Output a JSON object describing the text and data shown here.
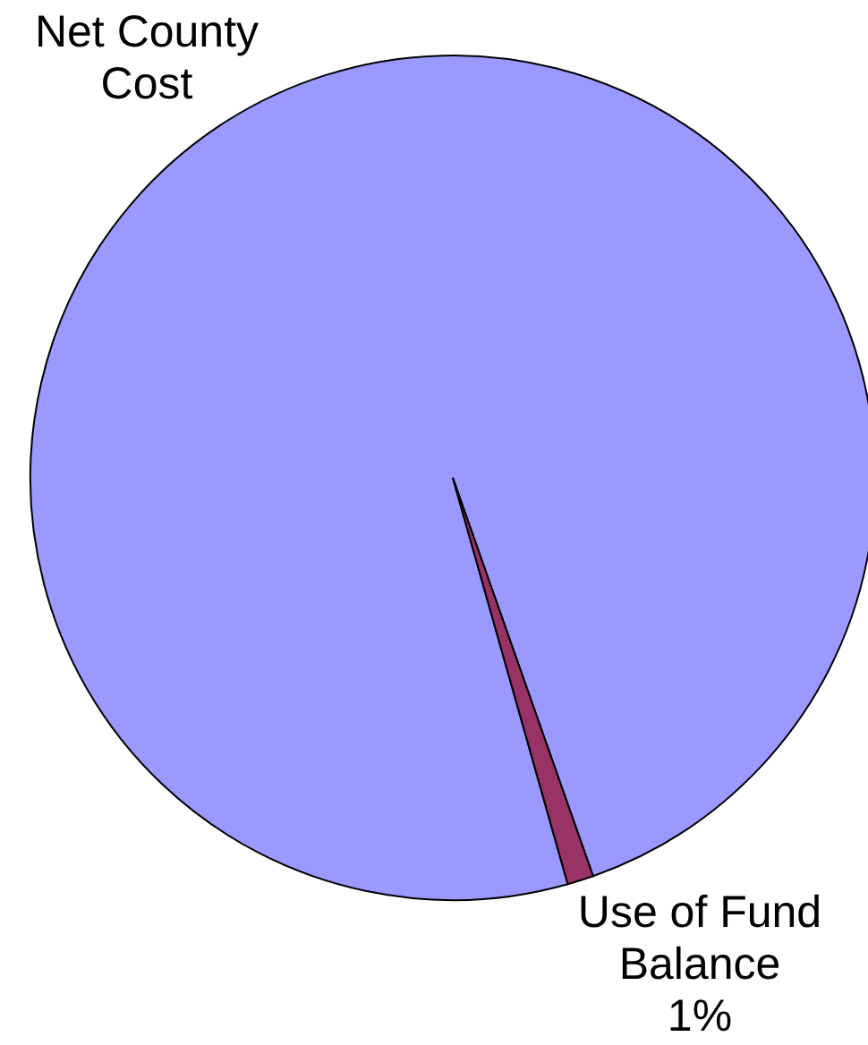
{
  "chart_data": {
    "type": "pie",
    "categories": [
      "Net County Cost",
      "Use of Fund Balance"
    ],
    "values": [
      99,
      1
    ],
    "colors": [
      "#9999ff",
      "#993366"
    ],
    "value_labels": [
      null,
      "1%"
    ]
  }
}
